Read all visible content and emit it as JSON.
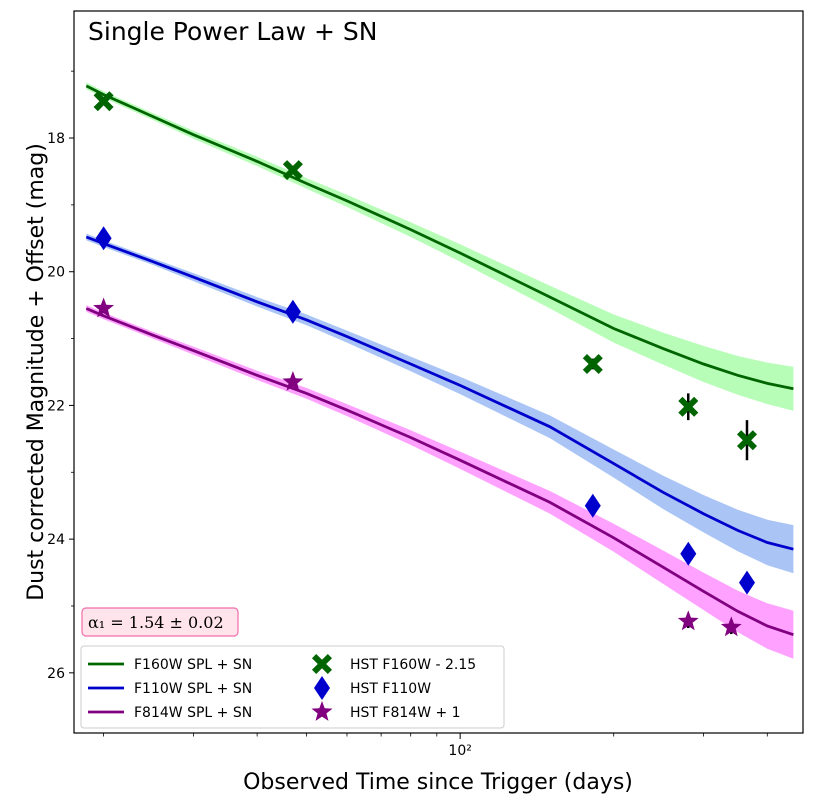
{
  "chart_data": {
    "type": "line",
    "title": "Single Power Law + SN",
    "xlabel": "Observed Time since Trigger (days)",
    "ylabel": "Dust corrected Magnitude + Offset (mag)",
    "xscale": "log",
    "xlim": [
      17.5,
      470
    ],
    "ylim": [
      26.9,
      16.1
    ],
    "y_ticks": [
      18,
      20,
      22,
      24,
      26
    ],
    "x_major_ticks": [
      100
    ],
    "x_major_tick_labels": [
      "10²"
    ],
    "x_minor_ticks": [
      20,
      30,
      40,
      50,
      60,
      70,
      80,
      90,
      200,
      300,
      400
    ],
    "annotation": "α₁ = 1.54 ± 0.02",
    "legend_position": "lower-left",
    "model_series": [
      {
        "name": "F160W SPL + SN",
        "color": "#006400",
        "band_color": "#7CFC7C",
        "x": [
          18.5,
          20,
          25,
          30,
          40,
          50,
          60,
          80,
          100,
          150,
          200,
          250,
          300,
          350,
          400,
          450
        ],
        "y": [
          17.22,
          17.35,
          17.68,
          17.95,
          18.35,
          18.68,
          18.94,
          19.37,
          19.72,
          20.38,
          20.85,
          21.15,
          21.38,
          21.55,
          21.67,
          21.75
        ],
        "band": [
          0.05,
          0.05,
          0.05,
          0.06,
          0.07,
          0.08,
          0.09,
          0.11,
          0.13,
          0.17,
          0.21,
          0.24,
          0.27,
          0.29,
          0.31,
          0.33
        ]
      },
      {
        "name": "F110W SPL + SN",
        "color": "#0000CD",
        "band_color": "#6495ED",
        "x": [
          18.5,
          20,
          25,
          30,
          40,
          50,
          60,
          80,
          100,
          150,
          200,
          250,
          300,
          350,
          400,
          450
        ],
        "y": [
          19.48,
          19.58,
          19.85,
          20.08,
          20.45,
          20.72,
          20.97,
          21.38,
          21.7,
          22.32,
          22.87,
          23.3,
          23.62,
          23.87,
          24.05,
          24.15
        ],
        "band": [
          0.05,
          0.05,
          0.05,
          0.06,
          0.07,
          0.08,
          0.09,
          0.11,
          0.13,
          0.17,
          0.21,
          0.25,
          0.28,
          0.31,
          0.34,
          0.36
        ]
      },
      {
        "name": "F814W SPL + SN",
        "color": "#800080",
        "band_color": "#FF55FF",
        "x": [
          18.5,
          20,
          25,
          30,
          40,
          50,
          60,
          80,
          100,
          150,
          200,
          250,
          300,
          350,
          400,
          450
        ],
        "y": [
          20.55,
          20.66,
          20.95,
          21.18,
          21.55,
          21.82,
          22.07,
          22.48,
          22.82,
          23.45,
          23.98,
          24.42,
          24.78,
          25.08,
          25.3,
          25.43
        ],
        "band": [
          0.05,
          0.05,
          0.05,
          0.06,
          0.07,
          0.08,
          0.09,
          0.11,
          0.13,
          0.17,
          0.21,
          0.25,
          0.28,
          0.31,
          0.34,
          0.36
        ]
      }
    ],
    "observed_series": [
      {
        "name": "HST F160W - 2.15",
        "color": "#006400",
        "marker": "X",
        "x": [
          20,
          47,
          182,
          280,
          365
        ],
        "y": [
          17.45,
          18.48,
          21.38,
          22.02,
          22.52
        ],
        "yerr": [
          0.05,
          0.05,
          0.08,
          0.2,
          0.3
        ]
      },
      {
        "name": "HST F110W",
        "color": "#0000CD",
        "marker": "diamond",
        "x": [
          20,
          47,
          182,
          280,
          365
        ],
        "y": [
          19.5,
          20.6,
          23.5,
          24.22,
          24.65
        ],
        "yerr": [
          0.05,
          0.05,
          0.06,
          0.1,
          0.1
        ]
      },
      {
        "name": "HST F814W + 1",
        "color": "#800080",
        "marker": "star",
        "x": [
          20,
          47,
          280,
          340
        ],
        "y": [
          20.55,
          21.65,
          25.23,
          25.32
        ],
        "yerr": [
          0.05,
          0.05,
          0.1,
          0.1
        ]
      }
    ]
  }
}
